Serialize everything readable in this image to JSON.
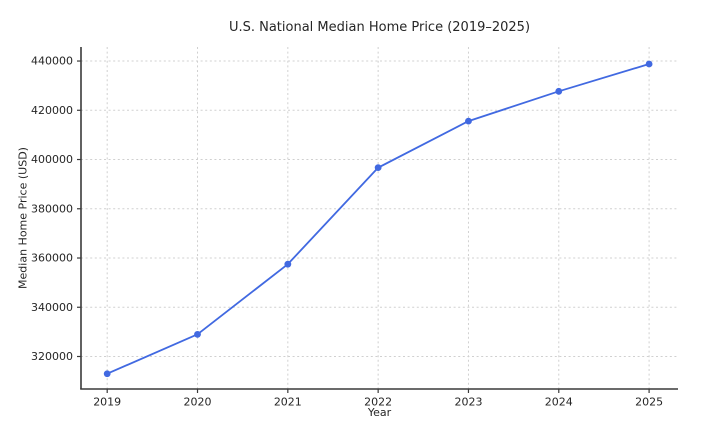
{
  "chart_data": {
    "type": "line",
    "title": "U.S. National Median Home Price (2019–2025)",
    "xlabel": "Year",
    "ylabel": "Median Home Price (USD)",
    "categories": [
      2019,
      2020,
      2021,
      2022,
      2023,
      2024,
      2025
    ],
    "series": [
      {
        "name": "Median Home Price",
        "values": [
          313000,
          329000,
          357500,
          396700,
          415600,
          427700,
          438800
        ]
      }
    ],
    "yticks": [
      320000,
      340000,
      360000,
      380000,
      400000,
      420000,
      440000
    ],
    "ytick_labels": [
      "320000",
      "340000",
      "360000",
      "380000",
      "400000",
      "420000",
      "440000"
    ],
    "xtick_labels": [
      "2019",
      "2020",
      "2021",
      "2022",
      "2023",
      "2024",
      "2025"
    ],
    "xlim": [
      2018.71,
      2025.32
    ],
    "ylim": [
      306800,
      445700
    ],
    "grid": true,
    "grid_style": "dashed",
    "legend": "none",
    "marker": "circle",
    "colors": {
      "line": "#4169e1",
      "grid": "#d0d0d0",
      "spine": "#3a3a3a",
      "text": "#262626",
      "background": "#ffffff"
    }
  }
}
